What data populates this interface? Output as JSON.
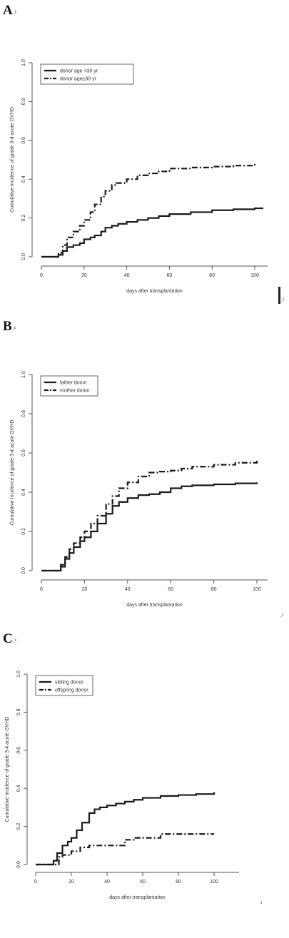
{
  "panels": [
    {
      "letter": "A",
      "mark": ".¹"
    },
    {
      "letter": "B",
      "mark": ".¹"
    },
    {
      "letter": "C",
      "mark": ".¹"
    }
  ],
  "stray_marks": [
    ".¹",
    ".¹",
    "¹"
  ],
  "chart_data": [
    {
      "type": "line",
      "panel": "A",
      "title": "",
      "xlabel": "days after transplantation",
      "ylabel": "Cumulative Incidence of grade 3-4 acute GVHD",
      "xlim": [
        0,
        105
      ],
      "ylim": [
        0,
        1.0
      ],
      "xticks": [
        0,
        20,
        40,
        60,
        80,
        100
      ],
      "yticks": [
        0.0,
        0.2,
        0.4,
        0.6,
        0.8,
        1.0
      ],
      "legend_position": "top-left",
      "series": [
        {
          "name": "donor age <30 yr",
          "style": "solid",
          "x": [
            0,
            6,
            8,
            10,
            12,
            15,
            18,
            20,
            23,
            25,
            28,
            30,
            33,
            36,
            40,
            45,
            50,
            55,
            60,
            70,
            80,
            90,
            100,
            104
          ],
          "y": [
            0,
            0,
            0.01,
            0.03,
            0.05,
            0.06,
            0.07,
            0.09,
            0.1,
            0.11,
            0.13,
            0.15,
            0.16,
            0.17,
            0.18,
            0.19,
            0.2,
            0.21,
            0.22,
            0.23,
            0.24,
            0.245,
            0.25,
            0.25
          ]
        },
        {
          "name": "donor age≥30 yr",
          "style": "dash-dot",
          "x": [
            0,
            6,
            8,
            10,
            12,
            15,
            18,
            20,
            23,
            25,
            28,
            30,
            33,
            35,
            40,
            45,
            50,
            55,
            60,
            70,
            80,
            90,
            100
          ],
          "y": [
            0,
            0,
            0.02,
            0.06,
            0.1,
            0.13,
            0.16,
            0.19,
            0.23,
            0.27,
            0.31,
            0.34,
            0.37,
            0.38,
            0.4,
            0.42,
            0.43,
            0.44,
            0.455,
            0.46,
            0.465,
            0.47,
            0.48
          ]
        }
      ]
    },
    {
      "type": "line",
      "panel": "B",
      "title": "",
      "xlabel": "days after transplantation",
      "ylabel": "Cumulative Incidence of grade 3-4 acute GVHD",
      "xlim": [
        0,
        100
      ],
      "ylim": [
        0,
        1.0
      ],
      "xticks": [
        0,
        20,
        40,
        60,
        80,
        100
      ],
      "yticks": [
        0.0,
        0.2,
        0.4,
        0.6,
        0.8,
        1.0
      ],
      "legend_position": "top-left",
      "series": [
        {
          "name": "father donor",
          "style": "solid",
          "x": [
            0,
            7,
            9,
            11,
            13,
            15,
            18,
            20,
            23,
            26,
            30,
            33,
            36,
            40,
            45,
            50,
            55,
            60,
            65,
            70,
            80,
            90,
            100
          ],
          "y": [
            0,
            0,
            0.02,
            0.06,
            0.09,
            0.12,
            0.15,
            0.17,
            0.2,
            0.24,
            0.29,
            0.33,
            0.35,
            0.37,
            0.385,
            0.39,
            0.4,
            0.42,
            0.43,
            0.435,
            0.44,
            0.445,
            0.45
          ]
        },
        {
          "name": "mother donor",
          "style": "dash-dot",
          "x": [
            0,
            7,
            9,
            11,
            13,
            15,
            18,
            20,
            23,
            26,
            30,
            33,
            36,
            40,
            45,
            50,
            55,
            60,
            65,
            70,
            80,
            90,
            100
          ],
          "y": [
            0,
            0,
            0.03,
            0.07,
            0.11,
            0.14,
            0.17,
            0.2,
            0.24,
            0.28,
            0.34,
            0.38,
            0.42,
            0.45,
            0.48,
            0.5,
            0.505,
            0.51,
            0.52,
            0.53,
            0.54,
            0.55,
            0.56
          ]
        }
      ]
    },
    {
      "type": "line",
      "panel": "C",
      "title": "",
      "xlabel": "days after transplantation",
      "ylabel": "Cumulative Incidence of grade 3-4 acute GVHD",
      "xlim": [
        0,
        100
      ],
      "ylim": [
        0,
        1.0
      ],
      "xticks": [
        0,
        20,
        40,
        60,
        80,
        100
      ],
      "yticks": [
        0.0,
        0.2,
        0.4,
        0.6,
        0.8,
        1.0
      ],
      "legend_position": "top-left",
      "series": [
        {
          "name": "sibling donor",
          "style": "solid",
          "x": [
            0,
            8,
            10,
            12,
            15,
            18,
            20,
            23,
            26,
            30,
            33,
            36,
            40,
            45,
            50,
            55,
            60,
            70,
            80,
            90,
            100
          ],
          "y": [
            0,
            0,
            0.02,
            0.06,
            0.1,
            0.12,
            0.14,
            0.18,
            0.22,
            0.27,
            0.29,
            0.3,
            0.31,
            0.32,
            0.33,
            0.34,
            0.35,
            0.36,
            0.365,
            0.37,
            0.38
          ]
        },
        {
          "name": "offspring donor",
          "style": "dash-dot",
          "x": [
            0,
            10,
            13,
            15,
            18,
            20,
            25,
            30,
            40,
            47,
            50,
            55,
            60,
            65,
            70,
            80,
            90,
            100
          ],
          "y": [
            0,
            0,
            0.04,
            0.05,
            0.05,
            0.07,
            0.09,
            0.1,
            0.1,
            0.1,
            0.13,
            0.14,
            0.14,
            0.14,
            0.16,
            0.16,
            0.16,
            0.16
          ]
        }
      ]
    }
  ]
}
